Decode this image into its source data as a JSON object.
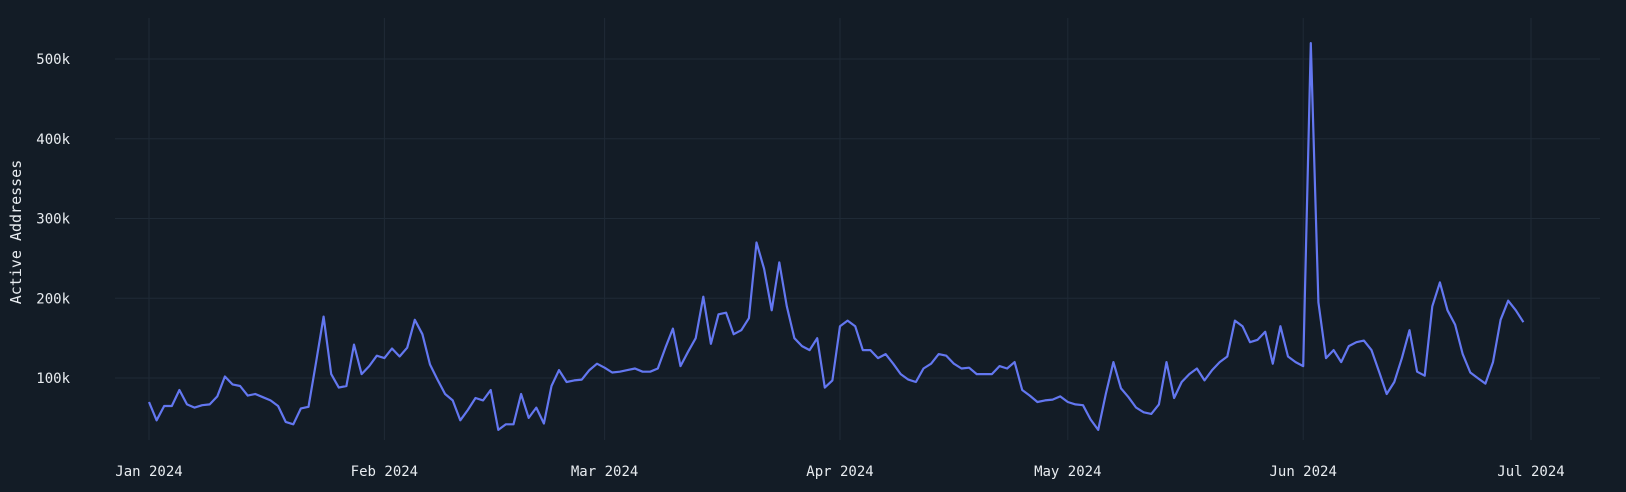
{
  "chart_data": {
    "type": "line",
    "title": "",
    "xlabel": "",
    "ylabel": "Active Addresses",
    "ylim": [
      0,
      540000
    ],
    "xlim": [
      "2023-12-26",
      "2024-07-09"
    ],
    "grid": true,
    "line_color": "#6377f0",
    "background_color": "#131c26",
    "y_ticks": [
      {
        "value": 100000,
        "label": "100k"
      },
      {
        "value": 200000,
        "label": "200k"
      },
      {
        "value": 300000,
        "label": "300k"
      },
      {
        "value": 400000,
        "label": "400k"
      },
      {
        "value": 500000,
        "label": "500k"
      }
    ],
    "x_ticks": [
      {
        "value": "2024-01-01",
        "label": "Jan 2024"
      },
      {
        "value": "2024-02-01",
        "label": "Feb 2024"
      },
      {
        "value": "2024-03-01",
        "label": "Mar 2024"
      },
      {
        "value": "2024-04-01",
        "label": "Apr 2024"
      },
      {
        "value": "2024-05-01",
        "label": "May 2024"
      },
      {
        "value": "2024-06-01",
        "label": "Jun 2024"
      },
      {
        "value": "2024-07-01",
        "label": "Jul 2024"
      }
    ],
    "series": [
      {
        "x": [
          "2024-01-01",
          "2024-01-02",
          "2024-01-03",
          "2024-01-04",
          "2024-01-05",
          "2024-01-06",
          "2024-01-07",
          "2024-01-08",
          "2024-01-09",
          "2024-01-10",
          "2024-01-11",
          "2024-01-12",
          "2024-01-13",
          "2024-01-14",
          "2024-01-15",
          "2024-01-16",
          "2024-01-17",
          "2024-01-18",
          "2024-01-19",
          "2024-01-20",
          "2024-01-21",
          "2024-01-22",
          "2024-01-23",
          "2024-01-24",
          "2024-01-25",
          "2024-01-26",
          "2024-01-27",
          "2024-01-28",
          "2024-01-29",
          "2024-01-30",
          "2024-01-31",
          "2024-02-01",
          "2024-02-02",
          "2024-02-03",
          "2024-02-04",
          "2024-02-05",
          "2024-02-06",
          "2024-02-07",
          "2024-02-08",
          "2024-02-09",
          "2024-02-10",
          "2024-02-11",
          "2024-02-12",
          "2024-02-13",
          "2024-02-14",
          "2024-02-15",
          "2024-02-16",
          "2024-02-17",
          "2024-02-18",
          "2024-02-19",
          "2024-02-20",
          "2024-02-21",
          "2024-02-22",
          "2024-02-23",
          "2024-02-24",
          "2024-02-25",
          "2024-02-26",
          "2024-02-27",
          "2024-02-28",
          "2024-02-29",
          "2024-03-01",
          "2024-03-02",
          "2024-03-03",
          "2024-03-04",
          "2024-03-05",
          "2024-03-06",
          "2024-03-07",
          "2024-03-08",
          "2024-03-09",
          "2024-03-10",
          "2024-03-11",
          "2024-03-12",
          "2024-03-13",
          "2024-03-14",
          "2024-03-15",
          "2024-03-16",
          "2024-03-17",
          "2024-03-18",
          "2024-03-19",
          "2024-03-20",
          "2024-03-21",
          "2024-03-22",
          "2024-03-23",
          "2024-03-24",
          "2024-03-25",
          "2024-03-26",
          "2024-03-27",
          "2024-03-28",
          "2024-03-29",
          "2024-03-30",
          "2024-03-31",
          "2024-04-01",
          "2024-04-02",
          "2024-04-03",
          "2024-04-04",
          "2024-04-05",
          "2024-04-06",
          "2024-04-07",
          "2024-04-08",
          "2024-04-09",
          "2024-04-10",
          "2024-04-11",
          "2024-04-12",
          "2024-04-13",
          "2024-04-14",
          "2024-04-15",
          "2024-04-16",
          "2024-04-17",
          "2024-04-18",
          "2024-04-19",
          "2024-04-20",
          "2024-04-21",
          "2024-04-22",
          "2024-04-23",
          "2024-04-24",
          "2024-04-25",
          "2024-04-26",
          "2024-04-27",
          "2024-04-28",
          "2024-04-29",
          "2024-04-30",
          "2024-05-01",
          "2024-05-02",
          "2024-05-03",
          "2024-05-04",
          "2024-05-05",
          "2024-05-06",
          "2024-05-07",
          "2024-05-08",
          "2024-05-09",
          "2024-05-10",
          "2024-05-11",
          "2024-05-12",
          "2024-05-13",
          "2024-05-14",
          "2024-05-15",
          "2024-05-16",
          "2024-05-17",
          "2024-05-18",
          "2024-05-19",
          "2024-05-20",
          "2024-05-21",
          "2024-05-22",
          "2024-05-23",
          "2024-05-24",
          "2024-05-25",
          "2024-05-26",
          "2024-05-27",
          "2024-05-28",
          "2024-05-29",
          "2024-05-30",
          "2024-05-31",
          "2024-06-01",
          "2024-06-02",
          "2024-06-03",
          "2024-06-04",
          "2024-06-05",
          "2024-06-06",
          "2024-06-07",
          "2024-06-08",
          "2024-06-09",
          "2024-06-10",
          "2024-06-11",
          "2024-06-12",
          "2024-06-13",
          "2024-06-14",
          "2024-06-15",
          "2024-06-16",
          "2024-06-17",
          "2024-06-18",
          "2024-06-19",
          "2024-06-20",
          "2024-06-21",
          "2024-06-22",
          "2024-06-23",
          "2024-06-24",
          "2024-06-25",
          "2024-06-26",
          "2024-06-27",
          "2024-06-28",
          "2024-06-29",
          "2024-06-30"
        ],
        "y": [
          70000,
          47000,
          65000,
          65000,
          85000,
          67000,
          63000,
          66000,
          67000,
          77000,
          102000,
          92000,
          90000,
          78000,
          80000,
          76000,
          72000,
          65000,
          45000,
          42000,
          62000,
          64000,
          120000,
          177000,
          105000,
          88000,
          90000,
          142000,
          105000,
          115000,
          128000,
          125000,
          137000,
          127000,
          138000,
          173000,
          155000,
          117000,
          98000,
          80000,
          72000,
          47000,
          60000,
          75000,
          72000,
          85000,
          35000,
          42000,
          42000,
          80000,
          50000,
          63000,
          43000,
          90000,
          110000,
          95000,
          97000,
          98000,
          110000,
          118000,
          113000,
          107000,
          108000,
          110000,
          112000,
          108000,
          108000,
          112000,
          138000,
          162000,
          115000,
          133000,
          150000,
          202000,
          143000,
          180000,
          182000,
          155000,
          160000,
          175000,
          270000,
          237000,
          185000,
          245000,
          190000,
          150000,
          140000,
          135000,
          150000,
          88000,
          97000,
          165000,
          172000,
          165000,
          135000,
          135000,
          125000,
          130000,
          118000,
          105000,
          98000,
          95000,
          112000,
          118000,
          130000,
          128000,
          118000,
          112000,
          113000,
          105000,
          105000,
          105000,
          115000,
          112000,
          120000,
          85000,
          78000,
          70000,
          72000,
          73000,
          77000,
          70000,
          67000,
          66000,
          48000,
          35000,
          80000,
          120000,
          87000,
          76000,
          63000,
          57000,
          55000,
          67000,
          120000,
          75000,
          95000,
          105000,
          112000,
          97000,
          110000,
          120000,
          127000,
          172000,
          165000,
          145000,
          148000,
          158000,
          118000,
          165000,
          127000,
          120000,
          115000,
          520000,
          195000,
          125000,
          135000,
          120000,
          140000,
          145000,
          147000,
          135000,
          108000,
          80000,
          95000,
          125000,
          160000,
          108000,
          103000,
          190000,
          220000,
          185000,
          167000,
          130000,
          107000,
          100000,
          93000,
          120000,
          173000,
          197000,
          185000,
          170000
        ]
      }
    ]
  }
}
